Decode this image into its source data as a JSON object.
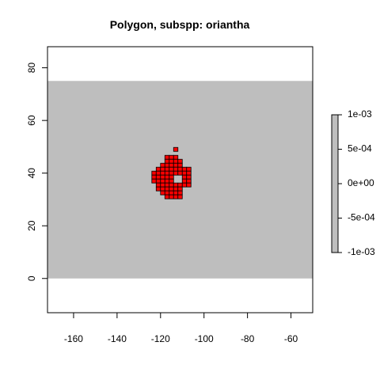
{
  "chart_data": {
    "type": "heatmap",
    "title": "Polygon, subspp: oriantha",
    "xlabel": "",
    "ylabel": "",
    "xlim": [
      -172,
      -50
    ],
    "ylim": [
      -13,
      88
    ],
    "xticks": [
      -160,
      -140,
      -120,
      -100,
      -80,
      -60
    ],
    "yticks": [
      0,
      20,
      40,
      60,
      80
    ],
    "xtick_labels": [
      "-160",
      "-140",
      "-120",
      "-100",
      "-80",
      "-60"
    ],
    "ytick_labels": [
      "0",
      "20",
      "40",
      "60",
      "80"
    ],
    "raster_extent": {
      "x": [
        -172,
        -50
      ],
      "y": [
        0,
        75
      ]
    },
    "background_value": 0,
    "background_color": "#bebebe",
    "polygon_color": "#ff0000",
    "cell_size": [
      2,
      1.5
    ],
    "polygon_cells": [
      [
        -113,
        49
      ],
      [
        -117,
        46
      ],
      [
        -115,
        46
      ],
      [
        -113,
        46
      ],
      [
        -117,
        44.5
      ],
      [
        -115,
        44.5
      ],
      [
        -113,
        44.5
      ],
      [
        -111,
        44.5
      ],
      [
        -119,
        43
      ],
      [
        -117,
        43
      ],
      [
        -115,
        43
      ],
      [
        -113,
        43
      ],
      [
        -111,
        43
      ],
      [
        -121,
        41.5
      ],
      [
        -119,
        41.5
      ],
      [
        -117,
        41.5
      ],
      [
        -115,
        41.5
      ],
      [
        -113,
        41.5
      ],
      [
        -111,
        41.5
      ],
      [
        -109,
        41.5
      ],
      [
        -107,
        41.5
      ],
      [
        -123,
        40
      ],
      [
        -121,
        40
      ],
      [
        -119,
        40
      ],
      [
        -117,
        40
      ],
      [
        -115,
        40
      ],
      [
        -113,
        40
      ],
      [
        -111,
        40
      ],
      [
        -109,
        40
      ],
      [
        -107,
        40
      ],
      [
        -123,
        38.5
      ],
      [
        -121,
        38.5
      ],
      [
        -119,
        38.5
      ],
      [
        -117,
        38.5
      ],
      [
        -115,
        38.5
      ],
      [
        -109,
        38.5
      ],
      [
        -107,
        38.5
      ],
      [
        -123,
        37
      ],
      [
        -121,
        37
      ],
      [
        -119,
        37
      ],
      [
        -117,
        37
      ],
      [
        -115,
        37
      ],
      [
        -109,
        37
      ],
      [
        -107,
        37
      ],
      [
        -121,
        35.5
      ],
      [
        -119,
        35.5
      ],
      [
        -117,
        35.5
      ],
      [
        -115,
        35.5
      ],
      [
        -113,
        35.5
      ],
      [
        -111,
        35.5
      ],
      [
        -109,
        35.5
      ],
      [
        -107,
        35.5
      ],
      [
        -121,
        34
      ],
      [
        -119,
        34
      ],
      [
        -117,
        34
      ],
      [
        -115,
        34
      ],
      [
        -113,
        34
      ],
      [
        -111,
        34
      ],
      [
        -119,
        32.5
      ],
      [
        -117,
        32.5
      ],
      [
        -115,
        32.5
      ],
      [
        -113,
        32.5
      ],
      [
        -111,
        32.5
      ],
      [
        -117,
        31
      ],
      [
        -115,
        31
      ],
      [
        -113,
        31
      ],
      [
        -111,
        31
      ]
    ],
    "legend": {
      "placement": "right",
      "color": "#bebebe",
      "range": [
        -0.001,
        0.001
      ],
      "labels": [
        "1e-03",
        "5e-04",
        "0e+00",
        "-5e-04",
        "-1e-03"
      ],
      "values": [
        0.001,
        0.0005,
        0,
        -0.0005,
        -0.001
      ]
    },
    "grid": false
  }
}
